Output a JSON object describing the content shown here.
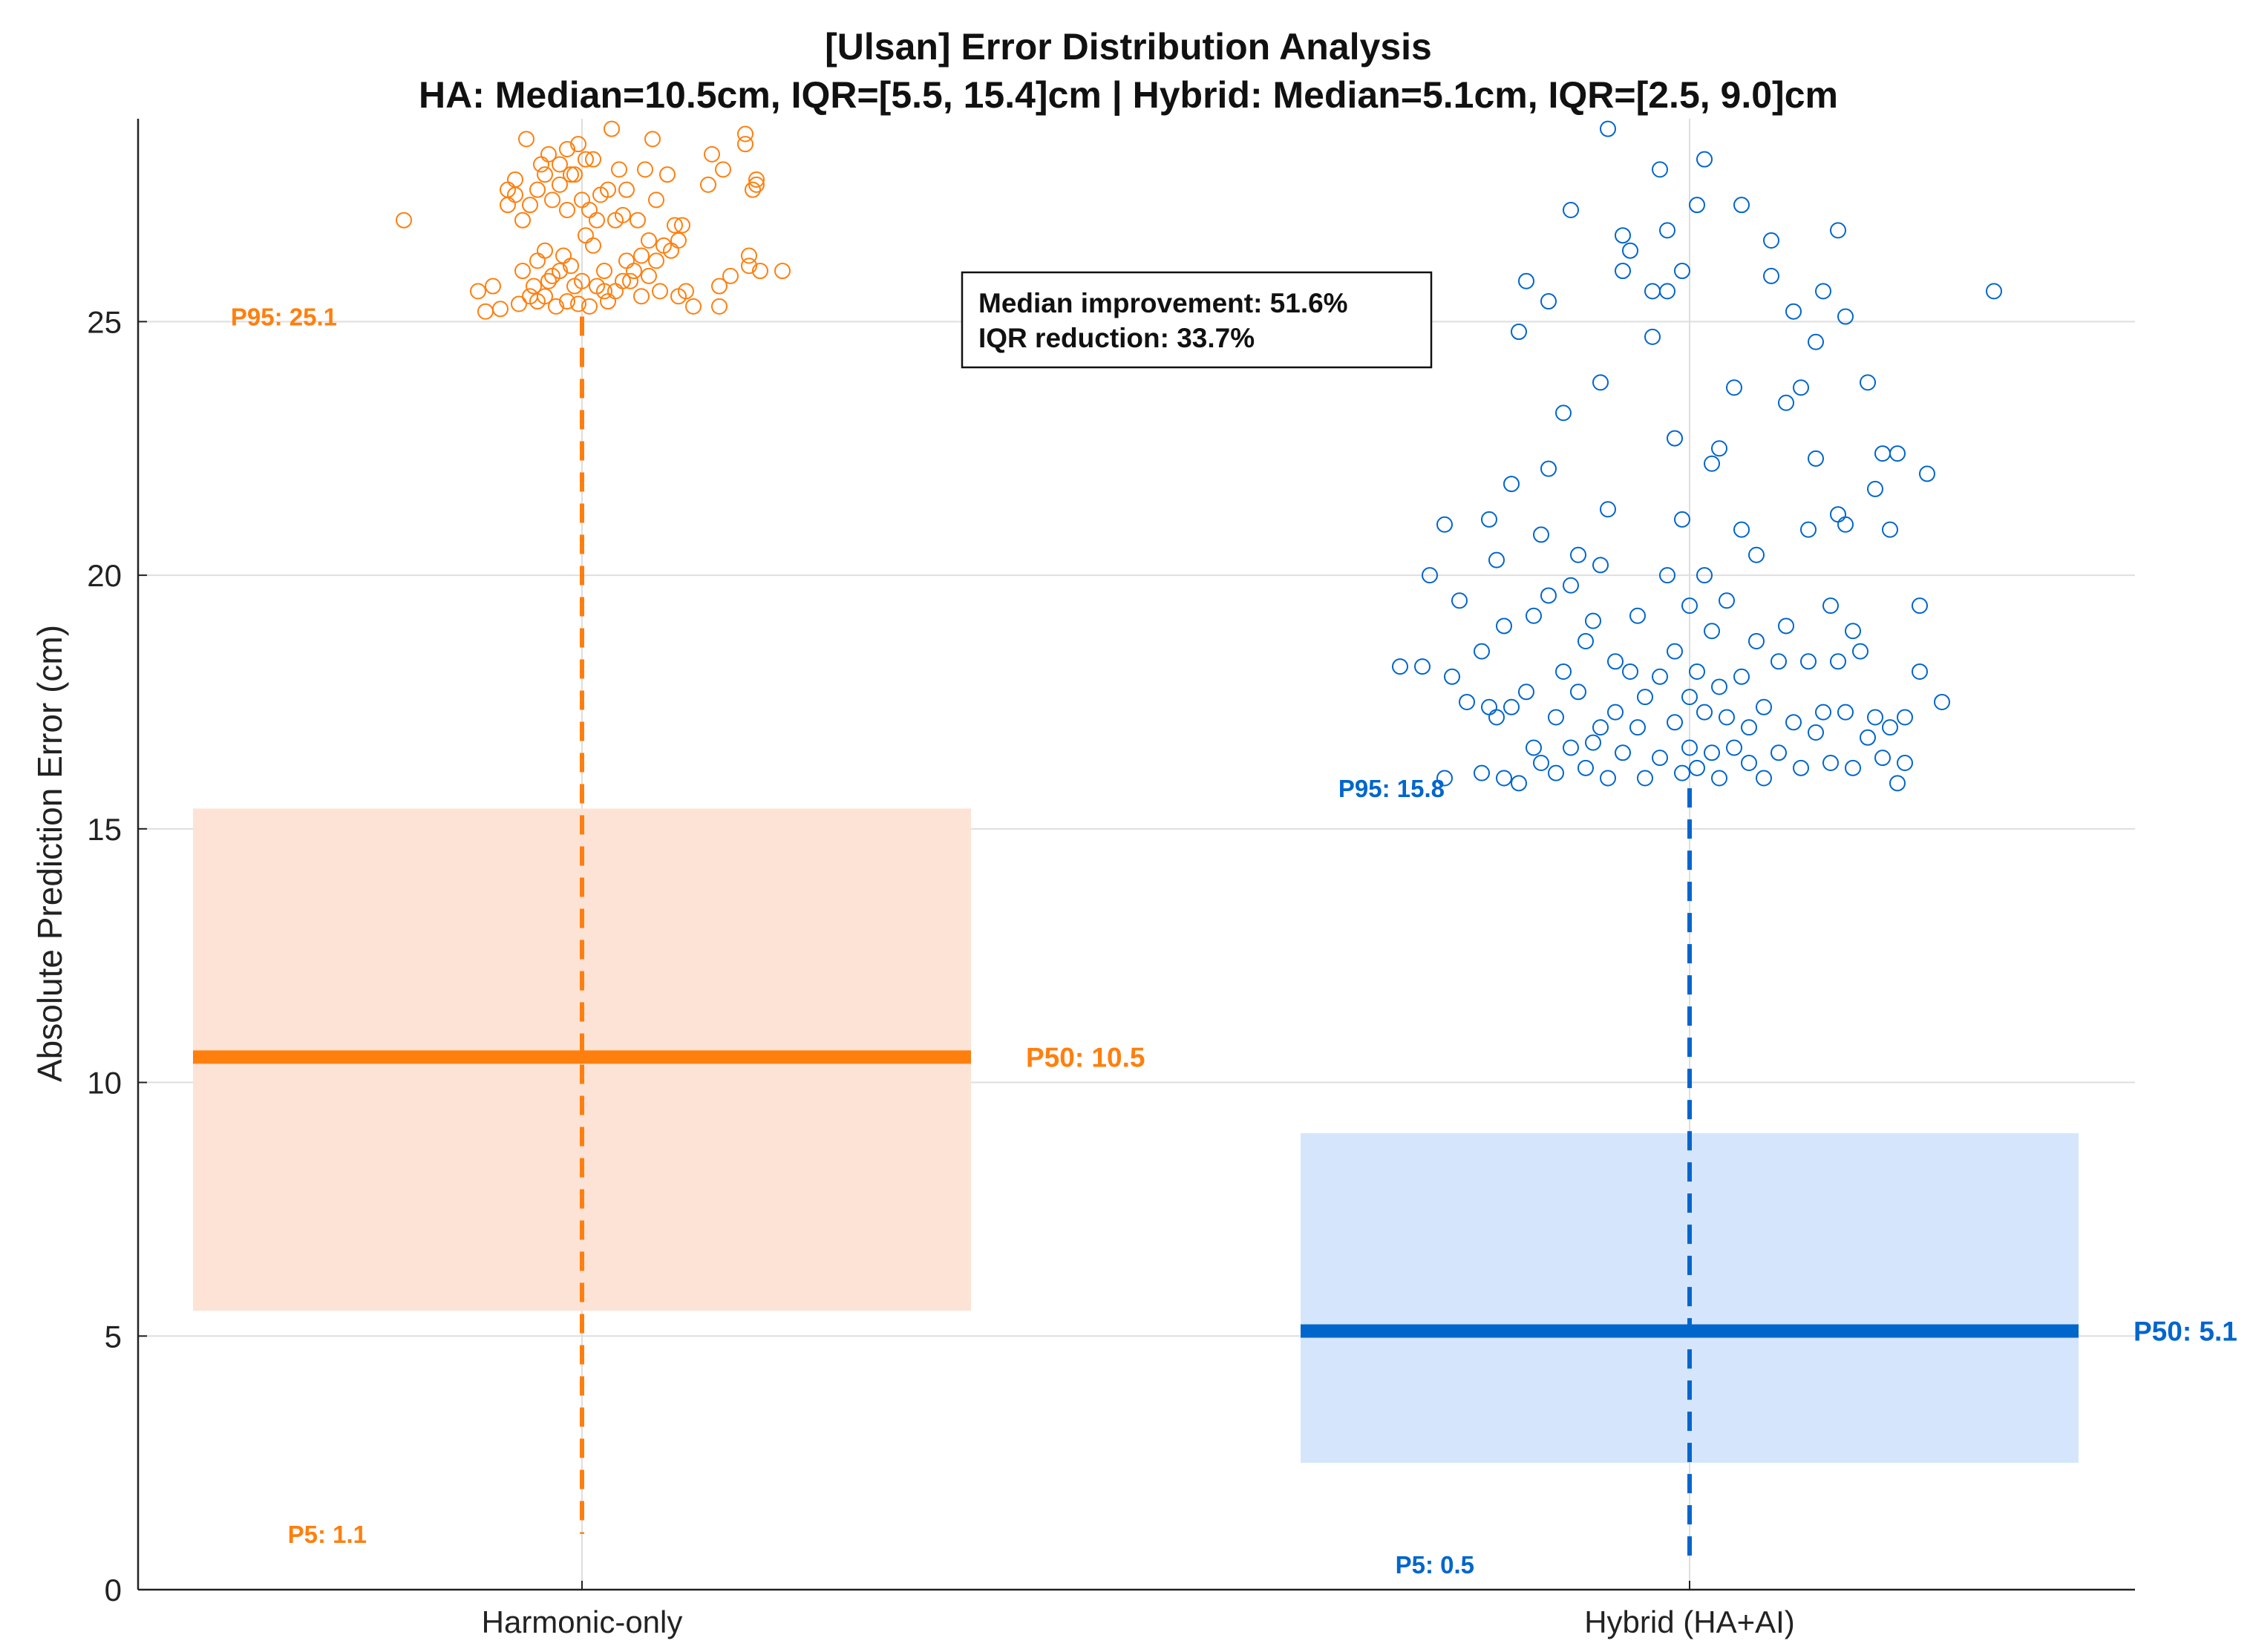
{
  "chart_data": {
    "type": "scatter",
    "title_line1": "[Ulsan] Error Distribution Analysis",
    "title_line2": "HA: Median=10.5cm, IQR=[5.5, 15.4]cm | Hybrid: Median=5.1cm, IQR=[2.5, 9.0]cm",
    "ylabel": "Absolute Prediction Error (cm)",
    "xlabel": "",
    "ylim": [
      0,
      29
    ],
    "yticks": [
      0,
      5,
      10,
      15,
      20,
      25
    ],
    "grid": true,
    "categories": [
      "Harmonic-only",
      "Hybrid (HA+AI)"
    ],
    "annotation": {
      "line1": "Median improvement: 51.6%",
      "line2": "IQR reduction: 33.7%"
    },
    "series": [
      {
        "name": "Harmonic-only",
        "color": "#ff7f0e",
        "iqr_fill": "#fde3d5",
        "p5": 1.1,
        "p25": 5.5,
        "p50": 10.5,
        "p75": 15.4,
        "p95": 25.1,
        "p5_label": "P5: 1.1",
        "p50_label": "P50: 10.5",
        "p95_label": "P95: 25.1",
        "outliers": [
          {
            "x": -0.24,
            "y": 27.0
          },
          {
            "x": -0.14,
            "y": 25.6
          },
          {
            "x": -0.13,
            "y": 25.2
          },
          {
            "x": -0.12,
            "y": 25.7
          },
          {
            "x": -0.11,
            "y": 25.25
          },
          {
            "x": -0.1,
            "y": 27.3
          },
          {
            "x": -0.1,
            "y": 27.6
          },
          {
            "x": -0.09,
            "y": 27.5
          },
          {
            "x": -0.09,
            "y": 27.8
          },
          {
            "x": -0.085,
            "y": 25.35
          },
          {
            "x": -0.08,
            "y": 26.0
          },
          {
            "x": -0.08,
            "y": 27.0
          },
          {
            "x": -0.075,
            "y": 28.6
          },
          {
            "x": -0.07,
            "y": 25.5
          },
          {
            "x": -0.07,
            "y": 27.3
          },
          {
            "x": -0.065,
            "y": 25.7
          },
          {
            "x": -0.06,
            "y": 25.4
          },
          {
            "x": -0.06,
            "y": 26.2
          },
          {
            "x": -0.06,
            "y": 27.6
          },
          {
            "x": -0.055,
            "y": 28.1
          },
          {
            "x": -0.05,
            "y": 25.5
          },
          {
            "x": -0.05,
            "y": 26.4
          },
          {
            "x": -0.05,
            "y": 27.9
          },
          {
            "x": -0.045,
            "y": 25.8
          },
          {
            "x": -0.045,
            "y": 28.3
          },
          {
            "x": -0.04,
            "y": 25.9
          },
          {
            "x": -0.04,
            "y": 27.4
          },
          {
            "x": -0.035,
            "y": 25.3
          },
          {
            "x": -0.03,
            "y": 26.0
          },
          {
            "x": -0.03,
            "y": 27.7
          },
          {
            "x": -0.03,
            "y": 28.1
          },
          {
            "x": -0.025,
            "y": 26.3
          },
          {
            "x": -0.02,
            "y": 25.4
          },
          {
            "x": -0.02,
            "y": 27.2
          },
          {
            "x": -0.02,
            "y": 28.4
          },
          {
            "x": -0.015,
            "y": 26.1
          },
          {
            "x": -0.015,
            "y": 27.9
          },
          {
            "x": -0.01,
            "y": 25.7
          },
          {
            "x": -0.01,
            "y": 27.9
          },
          {
            "x": -0.005,
            "y": 25.35
          },
          {
            "x": -0.005,
            "y": 28.5
          },
          {
            "x": 0.0,
            "y": 25.8
          },
          {
            "x": 0.0,
            "y": 27.4
          },
          {
            "x": 0.005,
            "y": 26.7
          },
          {
            "x": 0.005,
            "y": 28.2
          },
          {
            "x": 0.01,
            "y": 25.3
          },
          {
            "x": 0.01,
            "y": 27.2
          },
          {
            "x": 0.015,
            "y": 26.5
          },
          {
            "x": 0.015,
            "y": 28.2
          },
          {
            "x": 0.02,
            "y": 25.7
          },
          {
            "x": 0.02,
            "y": 27.0
          },
          {
            "x": 0.025,
            "y": 27.5
          },
          {
            "x": 0.03,
            "y": 25.6
          },
          {
            "x": 0.03,
            "y": 26.0
          },
          {
            "x": 0.035,
            "y": 25.4
          },
          {
            "x": 0.035,
            "y": 27.6
          },
          {
            "x": 0.04,
            "y": 28.8
          },
          {
            "x": 0.045,
            "y": 25.6
          },
          {
            "x": 0.045,
            "y": 27.0
          },
          {
            "x": 0.05,
            "y": 28.0
          },
          {
            "x": 0.055,
            "y": 25.8
          },
          {
            "x": 0.055,
            "y": 27.1
          },
          {
            "x": 0.06,
            "y": 26.2
          },
          {
            "x": 0.06,
            "y": 27.6
          },
          {
            "x": 0.065,
            "y": 25.8
          },
          {
            "x": 0.07,
            "y": 26.0
          },
          {
            "x": 0.075,
            "y": 27.0
          },
          {
            "x": 0.08,
            "y": 25.5
          },
          {
            "x": 0.08,
            "y": 26.3
          },
          {
            "x": 0.085,
            "y": 28.0
          },
          {
            "x": 0.09,
            "y": 25.9
          },
          {
            "x": 0.09,
            "y": 26.6
          },
          {
            "x": 0.095,
            "y": 28.6
          },
          {
            "x": 0.1,
            "y": 26.2
          },
          {
            "x": 0.1,
            "y": 27.4
          },
          {
            "x": 0.105,
            "y": 25.6
          },
          {
            "x": 0.11,
            "y": 26.5
          },
          {
            "x": 0.115,
            "y": 27.9
          },
          {
            "x": 0.12,
            "y": 26.4
          },
          {
            "x": 0.125,
            "y": 26.9
          },
          {
            "x": 0.13,
            "y": 25.5
          },
          {
            "x": 0.13,
            "y": 26.6
          },
          {
            "x": 0.135,
            "y": 26.9
          },
          {
            "x": 0.14,
            "y": 25.6
          },
          {
            "x": 0.15,
            "y": 25.3
          },
          {
            "x": 0.17,
            "y": 27.7
          },
          {
            "x": 0.175,
            "y": 28.3
          },
          {
            "x": 0.185,
            "y": 25.3
          },
          {
            "x": 0.185,
            "y": 25.7
          },
          {
            "x": 0.19,
            "y": 28.0
          },
          {
            "x": 0.2,
            "y": 25.9
          },
          {
            "x": 0.22,
            "y": 28.5
          },
          {
            "x": 0.22,
            "y": 28.7
          },
          {
            "x": 0.225,
            "y": 26.1
          },
          {
            "x": 0.225,
            "y": 26.3
          },
          {
            "x": 0.23,
            "y": 27.6
          },
          {
            "x": 0.235,
            "y": 27.8
          },
          {
            "x": 0.235,
            "y": 27.7
          },
          {
            "x": 0.24,
            "y": 26.0
          },
          {
            "x": 0.27,
            "y": 26.0
          }
        ]
      },
      {
        "name": "Hybrid (HA+AI)",
        "color": "#0066cc",
        "iqr_fill": "#d5e6fc",
        "p5": 0.5,
        "p25": 2.5,
        "p50": 5.1,
        "p75": 9.0,
        "p95": 15.8,
        "p5_label": "P5: 0.5",
        "p50_label": "P50: 5.1",
        "p95_label": "P95: 15.8",
        "outliers": [
          {
            "x": -0.39,
            "y": 18.2
          },
          {
            "x": -0.36,
            "y": 18.2
          },
          {
            "x": -0.35,
            "y": 20.0
          },
          {
            "x": -0.33,
            "y": 16.0
          },
          {
            "x": -0.33,
            "y": 21.0
          },
          {
            "x": -0.32,
            "y": 18.0
          },
          {
            "x": -0.31,
            "y": 19.5
          },
          {
            "x": -0.3,
            "y": 17.5
          },
          {
            "x": -0.28,
            "y": 16.1
          },
          {
            "x": -0.28,
            "y": 18.5
          },
          {
            "x": -0.27,
            "y": 21.1
          },
          {
            "x": -0.27,
            "y": 17.4
          },
          {
            "x": -0.26,
            "y": 20.3
          },
          {
            "x": -0.26,
            "y": 17.2
          },
          {
            "x": -0.25,
            "y": 19.0
          },
          {
            "x": -0.25,
            "y": 16.0
          },
          {
            "x": -0.24,
            "y": 21.8
          },
          {
            "x": -0.24,
            "y": 17.4
          },
          {
            "x": -0.23,
            "y": 24.8
          },
          {
            "x": -0.23,
            "y": 15.9
          },
          {
            "x": -0.22,
            "y": 17.7
          },
          {
            "x": -0.22,
            "y": 25.8
          },
          {
            "x": -0.21,
            "y": 16.6
          },
          {
            "x": -0.21,
            "y": 19.2
          },
          {
            "x": -0.2,
            "y": 20.8
          },
          {
            "x": -0.2,
            "y": 16.3
          },
          {
            "x": -0.19,
            "y": 25.4
          },
          {
            "x": -0.19,
            "y": 19.6
          },
          {
            "x": -0.19,
            "y": 22.1
          },
          {
            "x": -0.18,
            "y": 16.1
          },
          {
            "x": -0.18,
            "y": 17.2
          },
          {
            "x": -0.17,
            "y": 18.1
          },
          {
            "x": -0.17,
            "y": 23.2
          },
          {
            "x": -0.16,
            "y": 27.2
          },
          {
            "x": -0.16,
            "y": 16.6
          },
          {
            "x": -0.16,
            "y": 19.8
          },
          {
            "x": -0.15,
            "y": 20.4
          },
          {
            "x": -0.15,
            "y": 17.7
          },
          {
            "x": -0.14,
            "y": 16.2
          },
          {
            "x": -0.14,
            "y": 18.7
          },
          {
            "x": -0.13,
            "y": 19.1
          },
          {
            "x": -0.13,
            "y": 16.7
          },
          {
            "x": -0.12,
            "y": 20.2
          },
          {
            "x": -0.12,
            "y": 17.0
          },
          {
            "x": -0.12,
            "y": 23.8
          },
          {
            "x": -0.11,
            "y": 21.3
          },
          {
            "x": -0.11,
            "y": 16.0
          },
          {
            "x": -0.11,
            "y": 28.8
          },
          {
            "x": -0.1,
            "y": 18.3
          },
          {
            "x": -0.1,
            "y": 17.3
          },
          {
            "x": -0.09,
            "y": 26.7
          },
          {
            "x": -0.09,
            "y": 26.0
          },
          {
            "x": -0.09,
            "y": 16.5
          },
          {
            "x": -0.08,
            "y": 18.1
          },
          {
            "x": -0.08,
            "y": 26.4
          },
          {
            "x": -0.07,
            "y": 17.0
          },
          {
            "x": -0.07,
            "y": 19.2
          },
          {
            "x": -0.06,
            "y": 16.0
          },
          {
            "x": -0.06,
            "y": 17.6
          },
          {
            "x": -0.05,
            "y": 25.6
          },
          {
            "x": -0.05,
            "y": 24.7
          },
          {
            "x": -0.04,
            "y": 18.0
          },
          {
            "x": -0.04,
            "y": 28.0
          },
          {
            "x": -0.04,
            "y": 16.4
          },
          {
            "x": -0.03,
            "y": 26.8
          },
          {
            "x": -0.03,
            "y": 20.0
          },
          {
            "x": -0.03,
            "y": 25.6
          },
          {
            "x": -0.02,
            "y": 17.1
          },
          {
            "x": -0.02,
            "y": 22.7
          },
          {
            "x": -0.02,
            "y": 18.5
          },
          {
            "x": -0.01,
            "y": 16.1
          },
          {
            "x": -0.01,
            "y": 26.0
          },
          {
            "x": -0.01,
            "y": 21.1
          },
          {
            "x": 0.0,
            "y": 17.6
          },
          {
            "x": 0.0,
            "y": 19.4
          },
          {
            "x": 0.0,
            "y": 16.6
          },
          {
            "x": 0.01,
            "y": 18.1
          },
          {
            "x": 0.01,
            "y": 27.3
          },
          {
            "x": 0.01,
            "y": 16.2
          },
          {
            "x": 0.02,
            "y": 28.2
          },
          {
            "x": 0.02,
            "y": 17.3
          },
          {
            "x": 0.02,
            "y": 20.0
          },
          {
            "x": 0.03,
            "y": 16.5
          },
          {
            "x": 0.03,
            "y": 22.2
          },
          {
            "x": 0.03,
            "y": 18.9
          },
          {
            "x": 0.04,
            "y": 17.8
          },
          {
            "x": 0.04,
            "y": 22.5
          },
          {
            "x": 0.04,
            "y": 16.0
          },
          {
            "x": 0.05,
            "y": 19.5
          },
          {
            "x": 0.05,
            "y": 17.2
          },
          {
            "x": 0.06,
            "y": 16.6
          },
          {
            "x": 0.06,
            "y": 23.7
          },
          {
            "x": 0.07,
            "y": 18.0
          },
          {
            "x": 0.07,
            "y": 27.3
          },
          {
            "x": 0.07,
            "y": 20.9
          },
          {
            "x": 0.08,
            "y": 16.3
          },
          {
            "x": 0.08,
            "y": 17.0
          },
          {
            "x": 0.09,
            "y": 18.7
          },
          {
            "x": 0.09,
            "y": 20.4
          },
          {
            "x": 0.1,
            "y": 16.0
          },
          {
            "x": 0.1,
            "y": 17.4
          },
          {
            "x": 0.11,
            "y": 26.6
          },
          {
            "x": 0.11,
            "y": 25.9
          },
          {
            "x": 0.12,
            "y": 18.3
          },
          {
            "x": 0.12,
            "y": 16.5
          },
          {
            "x": 0.13,
            "y": 23.4
          },
          {
            "x": 0.13,
            "y": 19.0
          },
          {
            "x": 0.14,
            "y": 25.2
          },
          {
            "x": 0.14,
            "y": 17.1
          },
          {
            "x": 0.15,
            "y": 23.7
          },
          {
            "x": 0.15,
            "y": 16.2
          },
          {
            "x": 0.16,
            "y": 20.9
          },
          {
            "x": 0.16,
            "y": 18.3
          },
          {
            "x": 0.17,
            "y": 22.3
          },
          {
            "x": 0.17,
            "y": 24.6
          },
          {
            "x": 0.17,
            "y": 16.9
          },
          {
            "x": 0.18,
            "y": 25.6
          },
          {
            "x": 0.18,
            "y": 17.3
          },
          {
            "x": 0.19,
            "y": 19.4
          },
          {
            "x": 0.19,
            "y": 16.3
          },
          {
            "x": 0.2,
            "y": 26.8
          },
          {
            "x": 0.2,
            "y": 21.2
          },
          {
            "x": 0.2,
            "y": 18.3
          },
          {
            "x": 0.21,
            "y": 25.1
          },
          {
            "x": 0.21,
            "y": 21.0
          },
          {
            "x": 0.21,
            "y": 17.3
          },
          {
            "x": 0.22,
            "y": 16.2
          },
          {
            "x": 0.22,
            "y": 18.9
          },
          {
            "x": 0.23,
            "y": 18.5
          },
          {
            "x": 0.24,
            "y": 16.8
          },
          {
            "x": 0.24,
            "y": 23.8
          },
          {
            "x": 0.25,
            "y": 21.7
          },
          {
            "x": 0.25,
            "y": 17.2
          },
          {
            "x": 0.26,
            "y": 22.4
          },
          {
            "x": 0.26,
            "y": 16.4
          },
          {
            "x": 0.27,
            "y": 20.9
          },
          {
            "x": 0.27,
            "y": 17.0
          },
          {
            "x": 0.28,
            "y": 22.4
          },
          {
            "x": 0.28,
            "y": 15.9
          },
          {
            "x": 0.29,
            "y": 17.2
          },
          {
            "x": 0.29,
            "y": 16.3
          },
          {
            "x": 0.31,
            "y": 19.4
          },
          {
            "x": 0.31,
            "y": 18.1
          },
          {
            "x": 0.32,
            "y": 22.0
          },
          {
            "x": 0.34,
            "y": 17.5
          },
          {
            "x": 0.41,
            "y": 25.6
          }
        ]
      }
    ]
  }
}
